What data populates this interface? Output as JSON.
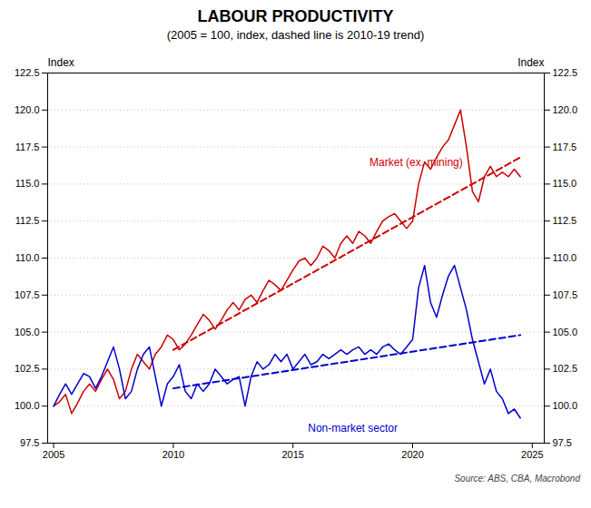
{
  "chart_data": {
    "type": "line",
    "title": "LABOUR PRODUCTIVITY",
    "subtitle": "(2005 = 100, index, dashed line is 2010-19 trend)",
    "ylabel": "Index",
    "y2label": "Index",
    "source": "Source: ABS, CBA, Macrobond",
    "xlim": [
      2004.75,
      2025.5
    ],
    "xticks": [
      2005,
      2010,
      2015,
      2020,
      2025
    ],
    "ylim": [
      97.5,
      122.5
    ],
    "yticks": [
      97.5,
      {
        "value": 100,
        "label": "100.0"
      },
      102.5,
      {
        "value": 105,
        "label": "105.0"
      },
      107.5,
      {
        "value": 110,
        "label": "110.0"
      },
      112.5,
      {
        "value": 115,
        "label": "115.0"
      },
      117.5,
      {
        "value": 120,
        "label": "120.0"
      },
      122.5
    ],
    "y2lim": [
      97.5,
      122.5
    ],
    "y2ticks": [
      97.5,
      {
        "value": 100,
        "label": "100.0"
      },
      102.5,
      {
        "value": 105,
        "label": "105.0"
      },
      107.5,
      {
        "value": 110,
        "label": "110.0"
      },
      112.5,
      {
        "value": 115,
        "label": "115.0"
      },
      117.5,
      {
        "value": 120,
        "label": "120.0"
      },
      122.5
    ],
    "grid": "y",
    "series": [
      {
        "color": "#CC0000",
        "line_style": "solid",
        "x": [
          2005.0,
          2005.25,
          2005.5,
          2005.75,
          2006.0,
          2006.25,
          2006.5,
          2006.75,
          2007.0,
          2007.25,
          2007.5,
          2007.75,
          2008.0,
          2008.25,
          2008.5,
          2008.75,
          2009.0,
          2009.25,
          2009.5,
          2009.75,
          2010.0,
          2010.25,
          2010.5,
          2010.75,
          2011.0,
          2011.25,
          2011.5,
          2011.75,
          2012.0,
          2012.25,
          2012.5,
          2012.75,
          2013.0,
          2013.25,
          2013.5,
          2013.75,
          2014.0,
          2014.25,
          2014.5,
          2014.75,
          2015.0,
          2015.25,
          2015.5,
          2015.75,
          2016.0,
          2016.25,
          2016.5,
          2016.75,
          2017.0,
          2017.25,
          2017.5,
          2017.75,
          2018.0,
          2018.25,
          2018.5,
          2018.75,
          2019.0,
          2019.25,
          2019.5,
          2019.75,
          2020.0,
          2020.25,
          2020.5,
          2020.75,
          2021.0,
          2021.25,
          2021.5,
          2021.75,
          2022.0,
          2022.25,
          2022.5,
          2022.75,
          2023.0,
          2023.25,
          2023.5,
          2023.75,
          2024.0,
          2024.25,
          2024.5
        ],
        "values": [
          100.0,
          100.3,
          100.8,
          99.5,
          100.2,
          101.0,
          101.5,
          101.0,
          101.8,
          102.5,
          101.8,
          100.5,
          101.0,
          102.5,
          103.5,
          103.0,
          102.5,
          103.5,
          104.0,
          104.8,
          104.5,
          103.8,
          104.2,
          104.8,
          105.5,
          106.2,
          105.8,
          105.2,
          105.8,
          106.5,
          107.0,
          106.5,
          107.2,
          107.5,
          107.0,
          107.8,
          108.5,
          108.2,
          107.8,
          108.5,
          109.2,
          109.8,
          110.0,
          109.5,
          110.0,
          110.8,
          110.5,
          110.0,
          111.0,
          111.5,
          111.0,
          111.8,
          111.5,
          111.0,
          111.8,
          112.5,
          112.8,
          113.0,
          112.5,
          112.0,
          112.5,
          115.0,
          116.5,
          116.0,
          116.8,
          117.5,
          118.0,
          119.0,
          120.0,
          117.5,
          114.5,
          113.8,
          115.5,
          116.2,
          115.5,
          115.8,
          115.5,
          116.0,
          115.5
        ]
      },
      {
        "color": "#0000CC",
        "line_style": "solid",
        "x": [
          2005.0,
          2005.25,
          2005.5,
          2005.75,
          2006.0,
          2006.25,
          2006.5,
          2006.75,
          2007.0,
          2007.25,
          2007.5,
          2007.75,
          2008.0,
          2008.25,
          2008.5,
          2008.75,
          2009.0,
          2009.25,
          2009.5,
          2009.75,
          2010.0,
          2010.25,
          2010.5,
          2010.75,
          2011.0,
          2011.25,
          2011.5,
          2011.75,
          2012.0,
          2012.25,
          2012.5,
          2012.75,
          2013.0,
          2013.25,
          2013.5,
          2013.75,
          2014.0,
          2014.25,
          2014.5,
          2014.75,
          2015.0,
          2015.25,
          2015.5,
          2015.75,
          2016.0,
          2016.25,
          2016.5,
          2016.75,
          2017.0,
          2017.25,
          2017.5,
          2017.75,
          2018.0,
          2018.25,
          2018.5,
          2018.75,
          2019.0,
          2019.25,
          2019.5,
          2019.75,
          2020.0,
          2020.25,
          2020.5,
          2020.75,
          2021.0,
          2021.25,
          2021.5,
          2021.75,
          2022.0,
          2022.25,
          2022.5,
          2022.75,
          2023.0,
          2023.25,
          2023.5,
          2023.75,
          2024.0,
          2024.25,
          2024.5
        ],
        "values": [
          100.0,
          100.8,
          101.5,
          100.8,
          101.5,
          102.2,
          102.0,
          101.2,
          102.0,
          103.0,
          104.0,
          102.5,
          100.5,
          101.0,
          102.5,
          103.5,
          104.0,
          102.0,
          100.0,
          101.5,
          102.0,
          102.8,
          101.0,
          100.5,
          101.5,
          101.0,
          101.5,
          102.5,
          102.0,
          101.5,
          101.8,
          102.0,
          100.0,
          102.0,
          103.0,
          102.5,
          102.8,
          103.5,
          103.0,
          103.5,
          102.5,
          103.0,
          103.5,
          102.8,
          103.0,
          103.5,
          103.2,
          103.5,
          103.8,
          103.5,
          103.8,
          104.0,
          103.5,
          103.8,
          103.5,
          104.0,
          104.2,
          103.8,
          103.5,
          104.0,
          104.5,
          108.0,
          109.5,
          107.0,
          106.0,
          107.5,
          108.8,
          109.5,
          108.0,
          106.5,
          104.5,
          103.0,
          101.5,
          102.5,
          101.0,
          100.5,
          99.5,
          99.8,
          99.2
        ]
      },
      {
        "color": "#CC0000",
        "line_style": "dashed",
        "x": [
          2010.0,
          2024.5
        ],
        "values": [
          103.8,
          116.8
        ]
      },
      {
        "color": "#0000CC",
        "line_style": "dashed",
        "x": [
          2010.0,
          2024.5
        ],
        "values": [
          101.2,
          104.8
        ]
      }
    ],
    "annotations": [
      {
        "text": "Market (ex. mining)",
        "x": 2018.2,
        "y": 116.2,
        "color": "#CC0000"
      },
      {
        "text": "Non-market sector",
        "x": 2017.5,
        "y": 98.8,
        "color": "#0000CC"
      }
    ]
  }
}
